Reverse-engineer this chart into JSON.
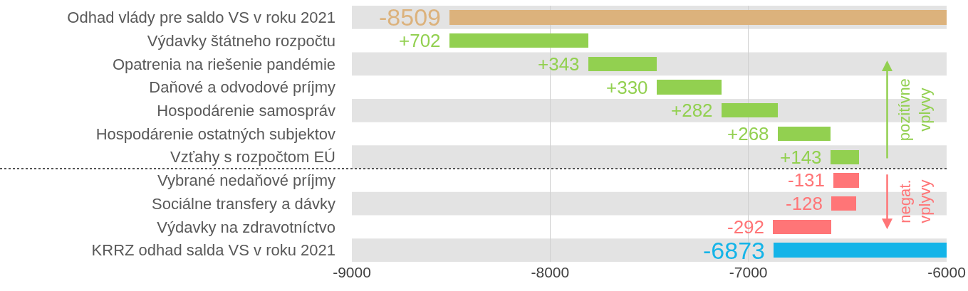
{
  "chart_data": {
    "type": "bar",
    "orientation": "horizontal",
    "categories": [
      "Odhad vlády pre saldo VS v roku 2021",
      "Výdavky štátneho rozpočtu",
      "Opatrenia na riešenie pandémie",
      "Daňové a odvodové príjmy",
      "Hospodárenie samospráv",
      "Hospodárenie ostatných subjektov",
      "Vzťahy s rozpočtom EÚ",
      "Vybrané nedaňové príjmy",
      "Sociálne transfery a dávky",
      "Výdavky na zdravotníctvo",
      "KRRZ odhad salda VS v roku 2021"
    ],
    "values": [
      -8509,
      702,
      343,
      330,
      282,
      268,
      143,
      -131,
      -128,
      -292,
      -6873
    ],
    "base": [
      null,
      -8509,
      -7807,
      -7464,
      -7134,
      -6852,
      -6584,
      -6441,
      -6455,
      -6583,
      null
    ],
    "colors": [
      "#dcb27c",
      "#92d050",
      "#92d050",
      "#92d050",
      "#92d050",
      "#92d050",
      "#92d050",
      "#ff7577",
      "#ff7577",
      "#ff7577",
      "#14b4e8"
    ],
    "value_labels": [
      "-8509",
      "+702",
      "+343",
      "+330",
      "+282",
      "+268",
      "+143",
      "-131",
      "-128",
      "-292",
      "-6873"
    ],
    "xlim": [
      -9000,
      -6000
    ],
    "xticks": [
      -9000,
      -8000,
      -7000,
      -6000
    ],
    "grid": "x",
    "annotations": [
      "pozitívne\nvplyvy",
      "negat.\nvplyvy"
    ],
    "ref_lines": [
      {
        "axis": "y",
        "value": "Vybrané nedaňové príjmy",
        "line_style": "dotted",
        "color": "#555555"
      }
    ]
  }
}
